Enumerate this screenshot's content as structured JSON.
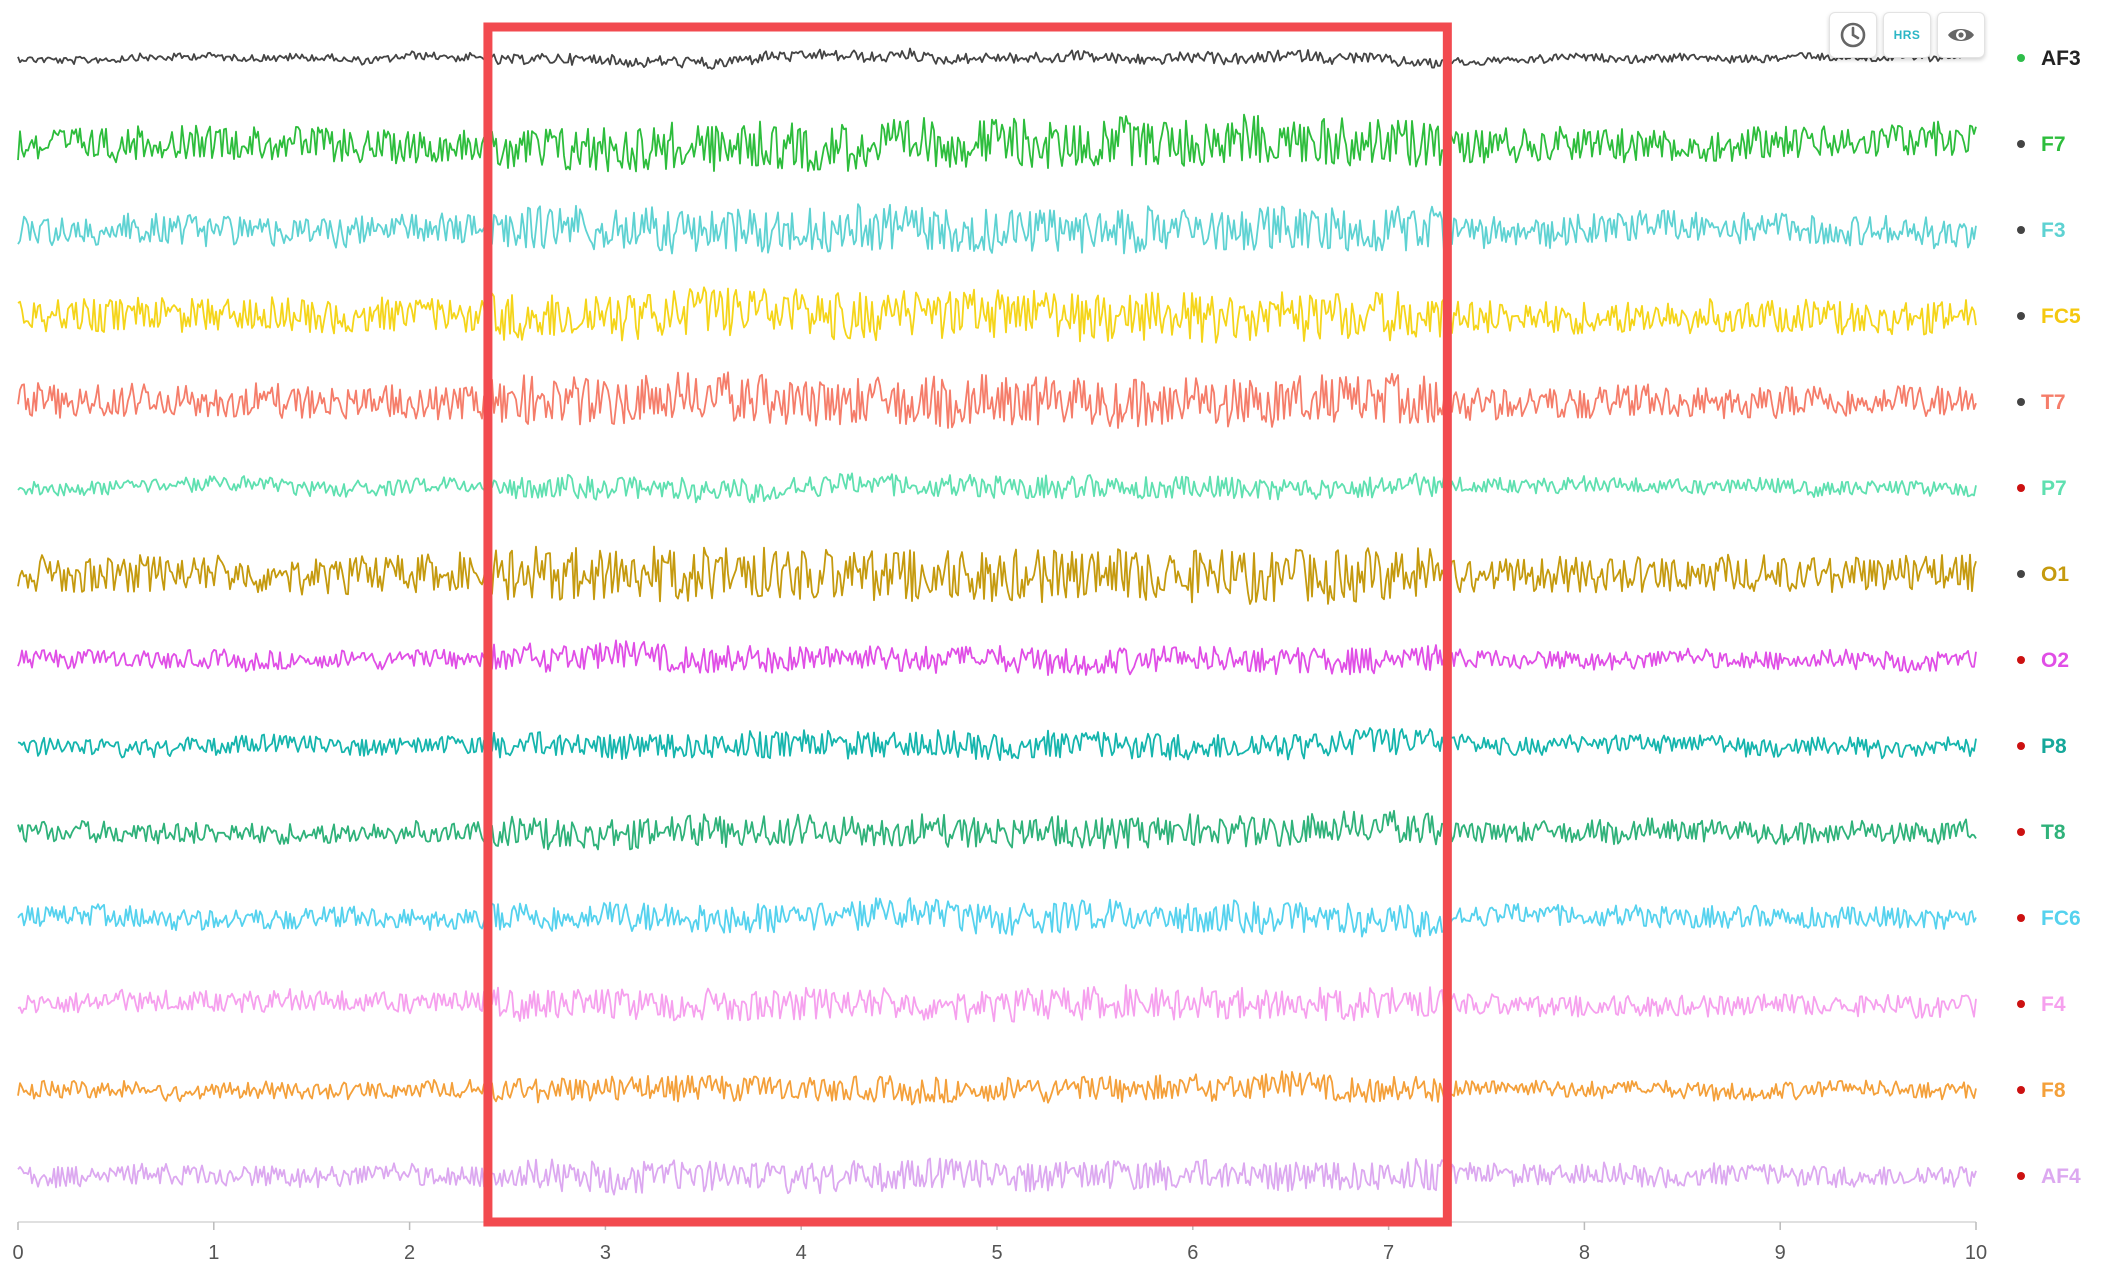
{
  "toolbar": {
    "history_icon": "clock-icon",
    "hrs_label": "HRS",
    "hrs_color": "#2bb6c6",
    "view_icon": "eye-icon"
  },
  "chart_data": {
    "type": "line",
    "title": "",
    "xlabel": "",
    "ylabel": "",
    "xlim": [
      0,
      10
    ],
    "x_ticks": [
      "0",
      "1",
      "2",
      "3",
      "4",
      "5",
      "6",
      "7",
      "8",
      "9",
      "10"
    ],
    "grid": false,
    "legend_position": "right",
    "highlight_region": {
      "x_start": 2.4,
      "x_end": 7.3,
      "color": "#f24a4f"
    },
    "series": [
      {
        "name": "AF3",
        "color": "#444444",
        "status_color": "#2ebd4a",
        "label_color": "#222222",
        "amplitude": 0.12
      },
      {
        "name": "F7",
        "color": "#2dbd3c",
        "status_color": "#444444",
        "label_color": "#2dbd3c",
        "amplitude": 0.55
      },
      {
        "name": "F3",
        "color": "#5ed2d2",
        "status_color": "#444444",
        "label_color": "#5ed2d2",
        "amplitude": 0.5
      },
      {
        "name": "FC5",
        "color": "#f5d51a",
        "status_color": "#444444",
        "label_color": "#f5c80f",
        "amplitude": 0.55
      },
      {
        "name": "T7",
        "color": "#f57d6a",
        "status_color": "#444444",
        "label_color": "#f57d6a",
        "amplitude": 0.55
      },
      {
        "name": "P7",
        "color": "#5fe0b0",
        "status_color": "#cc1111",
        "label_color": "#5fe0b0",
        "amplitude": 0.25
      },
      {
        "name": "O1",
        "color": "#c59a0e",
        "status_color": "#444444",
        "label_color": "#c59a0e",
        "amplitude": 0.6
      },
      {
        "name": "O2",
        "color": "#e04ee6",
        "status_color": "#cc1111",
        "label_color": "#e04ee6",
        "amplitude": 0.3
      },
      {
        "name": "P8",
        "color": "#15b5ad",
        "status_color": "#cc1111",
        "label_color": "#15a89a",
        "amplitude": 0.3
      },
      {
        "name": "T8",
        "color": "#2fb27a",
        "status_color": "#cc1111",
        "label_color": "#2fb27a",
        "amplitude": 0.35
      },
      {
        "name": "FC6",
        "color": "#55d2ee",
        "status_color": "#cc1111",
        "label_color": "#55d2ee",
        "amplitude": 0.35
      },
      {
        "name": "F4",
        "color": "#f6a0ee",
        "status_color": "#cc1111",
        "label_color": "#f6a0ee",
        "amplitude": 0.35
      },
      {
        "name": "F8",
        "color": "#f4a03a",
        "status_color": "#cc1111",
        "label_color": "#f4a03a",
        "amplitude": 0.28
      },
      {
        "name": "AF4",
        "color": "#dca8f0",
        "status_color": "#cc1111",
        "label_color": "#dca8f0",
        "amplitude": 0.35
      }
    ]
  }
}
